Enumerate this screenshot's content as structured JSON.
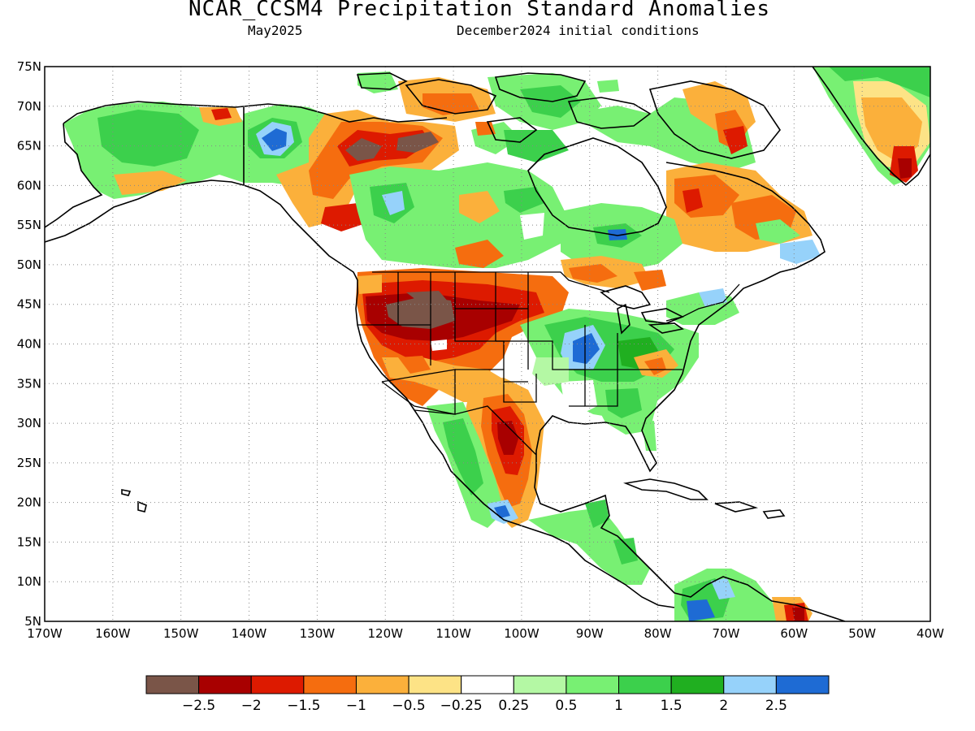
{
  "title": "NCAR_CCSM4 Precipitation Standard Anomalies",
  "subtitle_left": "May2025",
  "subtitle_right": "December2024 initial conditions",
  "axes": {
    "lat_labels": [
      "75N",
      "70N",
      "65N",
      "60N",
      "55N",
      "50N",
      "45N",
      "40N",
      "35N",
      "30N",
      "25N",
      "20N",
      "15N",
      "10N",
      "5N"
    ],
    "lon_labels": [
      "170W",
      "160W",
      "150W",
      "140W",
      "130W",
      "120W",
      "110W",
      "100W",
      "90W",
      "80W",
      "70W",
      "60W",
      "50W",
      "40W"
    ],
    "lat_range": [
      5,
      75
    ],
    "lon_range": [
      -170,
      -40
    ],
    "grid": "dotted"
  },
  "colorbar": {
    "labels": [
      "-2.5",
      "-2",
      "-1.5",
      "-1",
      "-0.5",
      "-0.25",
      "0.25",
      "0.5",
      "1",
      "1.5",
      "2",
      "2.5"
    ],
    "colors": [
      "#7a5548",
      "#a80000",
      "#dd1a00",
      "#f56d0f",
      "#fbb03b",
      "#fde386",
      "#ffffff",
      "#b4f8a4",
      "#78f073",
      "#3cd04c",
      "#20af20",
      "#96d2fa",
      "#1e6bd4"
    ]
  },
  "palette": {
    "land_green_light": "#b4f8a4",
    "land_green": "#78f073",
    "land_green_mid": "#3cd04c",
    "land_green_dark": "#20af20",
    "blue_light": "#96d2fa",
    "blue": "#1e6bd4",
    "yellow": "#fde386",
    "orange_light": "#fbb03b",
    "orange": "#f56d0f",
    "red": "#dd1a00",
    "dark_red": "#a80000",
    "brown": "#7a5548"
  }
}
